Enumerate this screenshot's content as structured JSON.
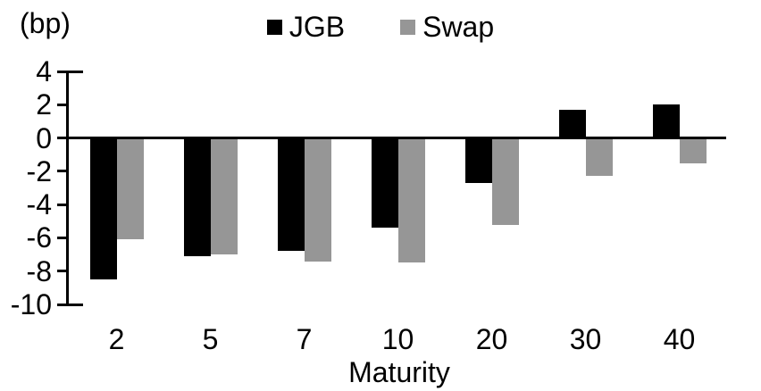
{
  "chart_data": {
    "type": "bar",
    "title": "",
    "unit_label": "(bp)",
    "xlabel": "Maturity",
    "ylabel": "",
    "categories": [
      "2",
      "5",
      "7",
      "10",
      "20",
      "30",
      "40"
    ],
    "series": [
      {
        "name": "JGB",
        "color": "#000000",
        "values": [
          -8.5,
          -7.1,
          -6.8,
          -5.4,
          -2.7,
          1.7,
          2.0
        ]
      },
      {
        "name": "Swap",
        "color": "#969696",
        "values": [
          -6.1,
          -7.0,
          -7.4,
          -7.5,
          -5.2,
          -2.3,
          -1.5
        ]
      }
    ],
    "y_ticks": [
      4,
      2,
      0,
      -2,
      -4,
      -6,
      -8,
      -10
    ],
    "ylim": [
      -10,
      4
    ],
    "grid": false,
    "legend_position": "top",
    "background_color": "#ffffff"
  }
}
